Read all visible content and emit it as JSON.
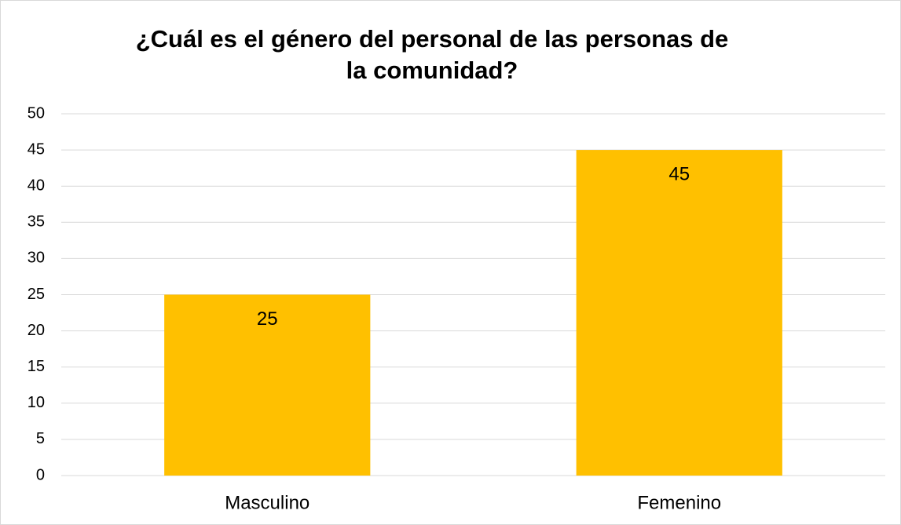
{
  "chart_data": {
    "type": "bar",
    "title": "¿Cuál es el género del personal de las personas de la comunidad?",
    "categories": [
      "Masculino",
      "Femenino"
    ],
    "values": [
      25,
      45
    ],
    "color": "#ffc000",
    "ylim": [
      0,
      50
    ],
    "yticks": [
      0,
      5,
      10,
      15,
      20,
      25,
      30,
      35,
      40,
      45,
      50
    ],
    "grid": true,
    "data_labels": true
  }
}
